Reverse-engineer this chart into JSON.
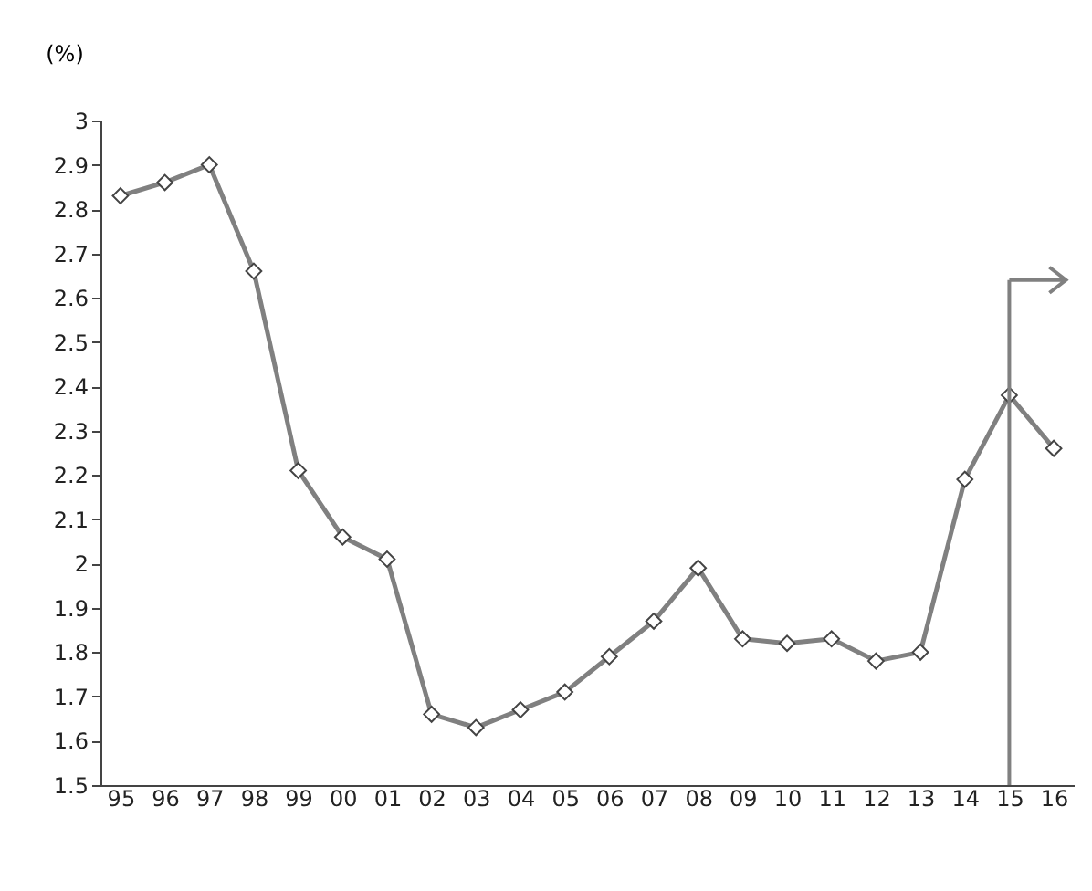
{
  "chart_data": {
    "type": "line",
    "ylabel": "(%)",
    "categories": [
      "95",
      "96",
      "97",
      "98",
      "99",
      "00",
      "01",
      "02",
      "03",
      "04",
      "05",
      "06",
      "07",
      "08",
      "09",
      "10",
      "11",
      "12",
      "13",
      "14",
      "15",
      "16"
    ],
    "series": [
      {
        "color": "#808080",
        "values": [
          2.83,
          2.86,
          2.9,
          2.66,
          2.21,
          2.06,
          2.01,
          1.66,
          1.63,
          1.67,
          1.71,
          1.79,
          1.87,
          1.99,
          1.83,
          1.82,
          1.83,
          1.78,
          1.8,
          2.19,
          2.38,
          2.26
        ]
      }
    ],
    "ylim": [
      1.5,
      3
    ],
    "yticks": [
      1.5,
      1.6,
      1.7,
      1.8,
      1.9,
      2,
      2.1,
      2.2,
      2.3,
      2.4,
      2.5,
      2.6,
      2.7,
      2.8,
      2.9,
      3
    ],
    "marker": "diamond",
    "line_style": "solid",
    "grid": false,
    "ref_lines": [
      {
        "axis": "x",
        "value": "15",
        "color": "#808080"
      }
    ]
  }
}
